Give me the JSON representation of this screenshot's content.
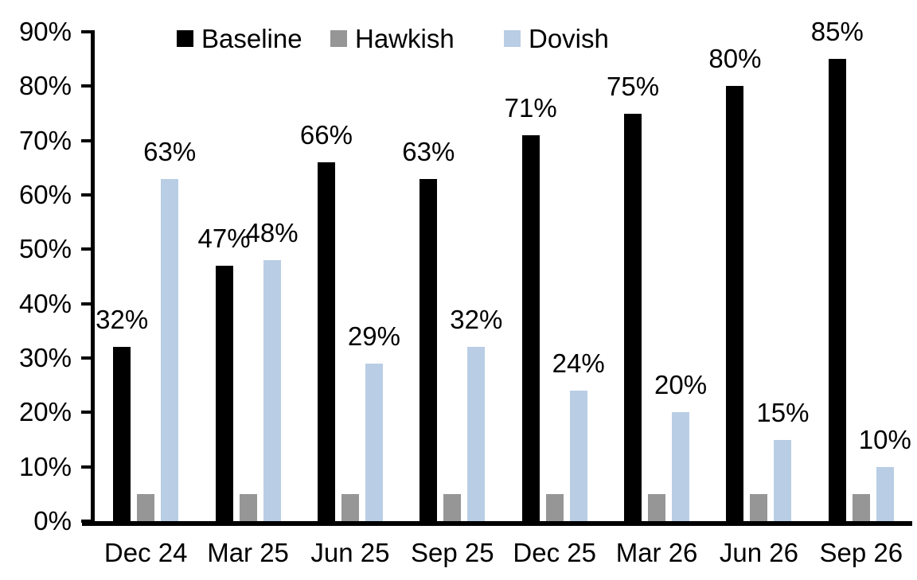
{
  "chart_data": {
    "type": "bar",
    "title": "",
    "xlabel": "",
    "ylabel": "",
    "categories": [
      "Dec 24",
      "Mar 25",
      "Jun 25",
      "Sep 25",
      "Dec 25",
      "Mar 26",
      "Jun 26",
      "Sep 26"
    ],
    "series": [
      {
        "name": "Baseline",
        "color": "#000000",
        "values": [
          32,
          47,
          66,
          63,
          71,
          75,
          80,
          85
        ],
        "data_labels": [
          "32%",
          "47%",
          "66%",
          "63%",
          "71%",
          "75%",
          "80%",
          "85%"
        ]
      },
      {
        "name": "Hawkish",
        "color": "#969696",
        "values": [
          5,
          5,
          5,
          5,
          5,
          5,
          5,
          5
        ],
        "data_labels": null
      },
      {
        "name": "Dovish",
        "color": "#b9cde5",
        "values": [
          63,
          48,
          29,
          32,
          24,
          20,
          15,
          10
        ],
        "data_labels": [
          "63%",
          "48%",
          "29%",
          "32%",
          "24%",
          "20%",
          "15%",
          "10%"
        ]
      }
    ],
    "ylim": [
      0,
      90
    ],
    "yticks": [
      "0%",
      "10%",
      "20%",
      "30%",
      "40%",
      "50%",
      "60%",
      "70%",
      "80%",
      "90%"
    ],
    "grid": false,
    "legend_position": "top",
    "axis_color": "#000000",
    "label_color": "#000000"
  }
}
